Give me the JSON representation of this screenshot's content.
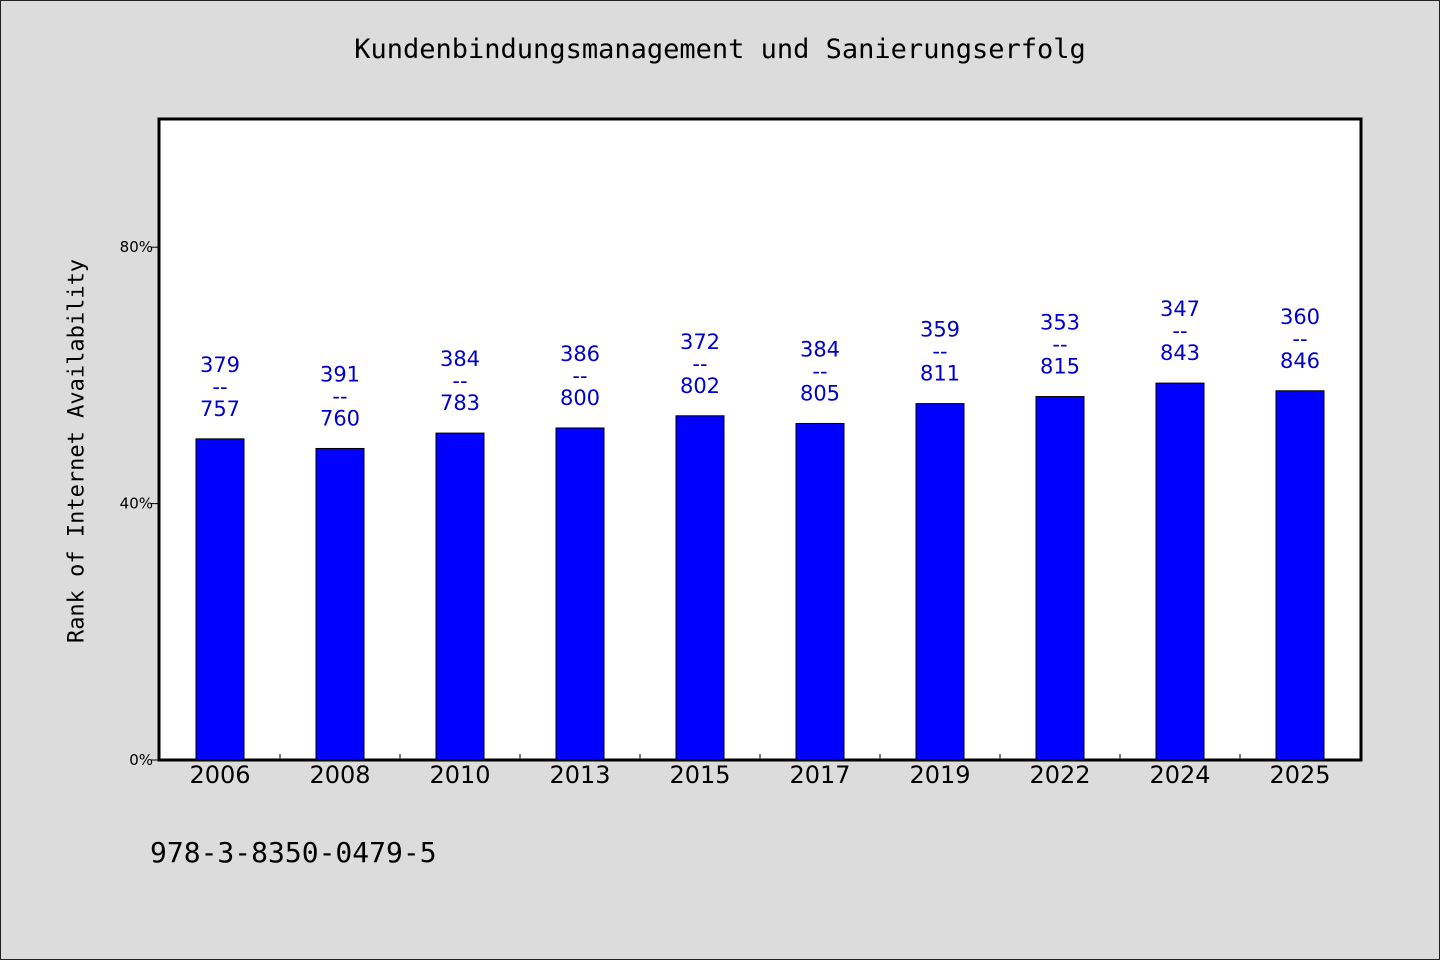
{
  "chart_data": {
    "type": "bar",
    "title": "Kundenbindungsmanagement und Sanierungserfolg",
    "ylabel": "Rank of Internet Availability",
    "xlabel": "",
    "categories": [
      "2006",
      "2008",
      "2010",
      "2013",
      "2015",
      "2017",
      "2019",
      "2022",
      "2024",
      "2025"
    ],
    "values": [
      50.1,
      48.6,
      51.0,
      51.8,
      53.7,
      52.5,
      55.6,
      56.7,
      58.8,
      57.6
    ],
    "labels": [
      "379\n--\n757",
      "391\n--\n760",
      "384\n--\n783",
      "386\n--\n800",
      "372\n--\n802",
      "384\n--\n805",
      "359\n--\n811",
      "353\n--\n815",
      "347\n--\n843",
      "360\n--\n846"
    ],
    "ylim": [
      0,
      100
    ],
    "yticks": [
      0,
      40,
      80
    ],
    "ytick_labels": [
      "0%",
      "40%",
      "80%"
    ],
    "grid": false,
    "colors": {
      "bar": "#0000ff",
      "label": "#0000cc",
      "background": "#dcdcdc",
      "plot": "#ffffff"
    }
  },
  "footer": {
    "text": "978-3-8350-0479-5"
  }
}
